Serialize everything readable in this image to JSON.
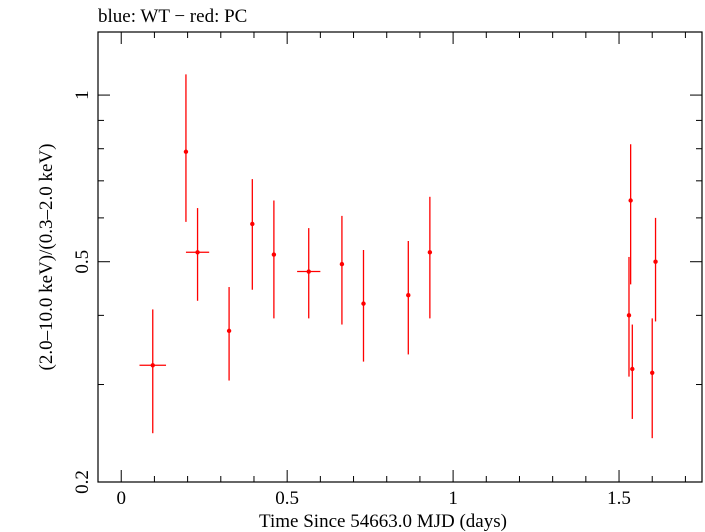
{
  "chart_data": {
    "type": "scatter",
    "title": "blue: WT − red: PC",
    "xlabel": "Time Since 54663.0 MJD (days)",
    "ylabel": "(2.0–10.0 keV)/(0.3–2.0 keV)",
    "xlim": [
      -0.07,
      1.75
    ],
    "ylim": [
      0.2,
      1.3
    ],
    "yscale": "log",
    "x_ticks": [
      0,
      0.5,
      1,
      1.5
    ],
    "x_tick_labels": [
      "0",
      "0.5",
      "1",
      "1.5"
    ],
    "y_ticks": [
      0.2,
      0.5,
      1
    ],
    "y_tick_labels": [
      "0.2",
      "0.5",
      "1"
    ],
    "grid": false,
    "series": [
      {
        "color": "#ff0000",
        "points": [
          {
            "x": 0.095,
            "y": 0.325,
            "xerr": 0.04,
            "ylo": 0.245,
            "yhi": 0.41
          },
          {
            "x": 0.195,
            "y": 0.79,
            "xerr": 0.0,
            "ylo": 0.59,
            "yhi": 1.09
          },
          {
            "x": 0.23,
            "y": 0.52,
            "xerr": 0.035,
            "ylo": 0.425,
            "yhi": 0.625
          },
          {
            "x": 0.325,
            "y": 0.375,
            "xerr": 0.0,
            "ylo": 0.305,
            "yhi": 0.45
          },
          {
            "x": 0.395,
            "y": 0.585,
            "xerr": 0.0,
            "ylo": 0.445,
            "yhi": 0.705
          },
          {
            "x": 0.46,
            "y": 0.515,
            "xerr": 0.0,
            "ylo": 0.395,
            "yhi": 0.645
          },
          {
            "x": 0.565,
            "y": 0.48,
            "xerr": 0.035,
            "ylo": 0.395,
            "yhi": 0.575
          },
          {
            "x": 0.665,
            "y": 0.495,
            "xerr": 0.0,
            "ylo": 0.385,
            "yhi": 0.605
          },
          {
            "x": 0.73,
            "y": 0.42,
            "xerr": 0.0,
            "ylo": 0.33,
            "yhi": 0.525
          },
          {
            "x": 0.865,
            "y": 0.435,
            "xerr": 0.0,
            "ylo": 0.34,
            "yhi": 0.545
          },
          {
            "x": 0.93,
            "y": 0.52,
            "xerr": 0.0,
            "ylo": 0.395,
            "yhi": 0.655
          },
          {
            "x": 1.53,
            "y": 0.4,
            "xerr": 0.0,
            "ylo": 0.31,
            "yhi": 0.51
          },
          {
            "x": 1.535,
            "y": 0.645,
            "xerr": 0.0,
            "ylo": 0.455,
            "yhi": 0.815
          },
          {
            "x": 1.54,
            "y": 0.32,
            "xerr": 0.0,
            "ylo": 0.26,
            "yhi": 0.385
          },
          {
            "x": 1.6,
            "y": 0.315,
            "xerr": 0.0,
            "ylo": 0.24,
            "yhi": 0.395
          },
          {
            "x": 1.61,
            "y": 0.5,
            "xerr": 0.0,
            "ylo": 0.39,
            "yhi": 0.6
          }
        ]
      }
    ]
  }
}
